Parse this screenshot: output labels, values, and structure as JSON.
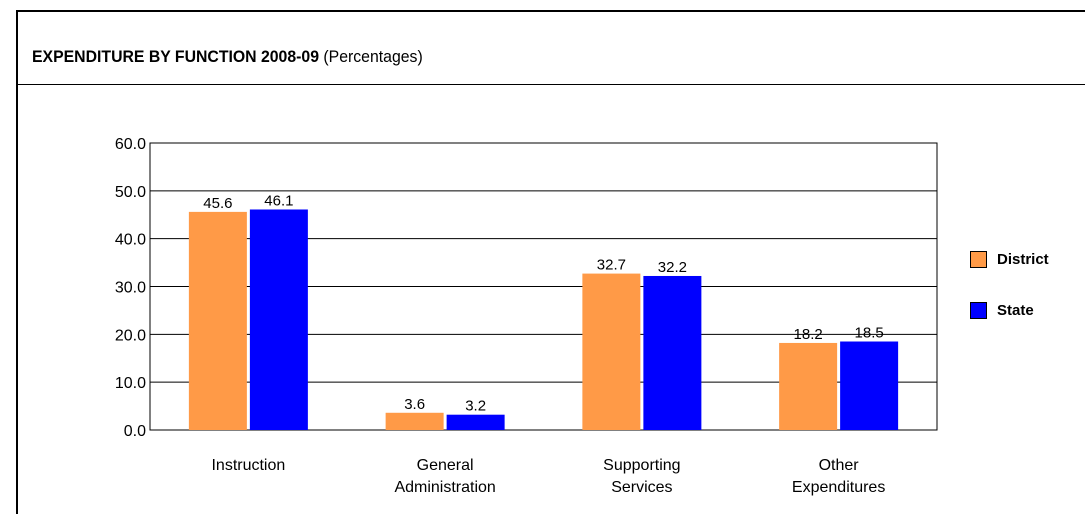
{
  "title": {
    "bold": "EXPENDITURE BY FUNCTION 2008-09",
    "normal": "(Percentages)"
  },
  "chart_data": {
    "type": "bar",
    "categories": [
      [
        "Instruction"
      ],
      [
        "General",
        "Administration"
      ],
      [
        "Supporting",
        "Services"
      ],
      [
        "Other",
        "Expenditures"
      ]
    ],
    "series": [
      {
        "name": "District",
        "color": "#FF9A47",
        "values": [
          45.6,
          3.6,
          32.7,
          18.2
        ]
      },
      {
        "name": "State",
        "color": "#0000FF",
        "values": [
          46.1,
          3.2,
          32.2,
          18.5
        ]
      }
    ],
    "ylim": [
      0,
      60
    ],
    "yticks": [
      "0.0",
      "10.0",
      "20.0",
      "30.0",
      "40.0",
      "50.0",
      "60.0"
    ],
    "grid": true,
    "legend_position": "right"
  }
}
